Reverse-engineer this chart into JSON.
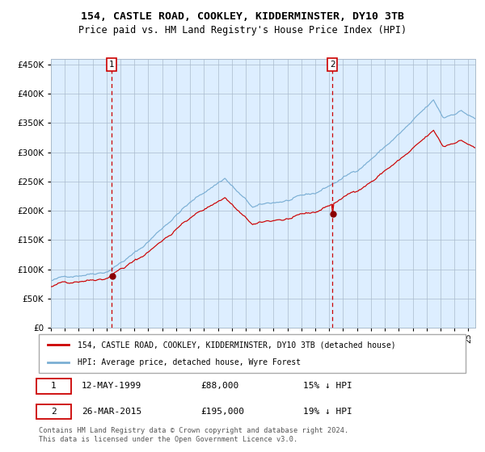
{
  "title1": "154, CASTLE ROAD, COOKLEY, KIDDERMINSTER, DY10 3TB",
  "title2": "Price paid vs. HM Land Registry's House Price Index (HPI)",
  "legend_line1": "154, CASTLE ROAD, COOKLEY, KIDDERMINSTER, DY10 3TB (detached house)",
  "legend_line2": "HPI: Average price, detached house, Wyre Forest",
  "annotation1_date": "12-MAY-1999",
  "annotation1_price": "£88,000",
  "annotation1_hpi": "15% ↓ HPI",
  "annotation2_date": "26-MAR-2015",
  "annotation2_price": "£195,000",
  "annotation2_hpi": "19% ↓ HPI",
  "footer": "Contains HM Land Registry data © Crown copyright and database right 2024.\nThis data is licensed under the Open Government Licence v3.0.",
  "purchase1_year": 1999.36,
  "purchase1_price": 88000,
  "purchase2_year": 2015.23,
  "purchase2_price": 195000,
  "hpi_color": "#7bafd4",
  "price_color": "#cc0000",
  "plot_bg": "#ddeeff",
  "vline_color": "#cc0000",
  "marker_color": "#8b0000",
  "ylim_max": 460000,
  "xlim_start": 1995.0,
  "xlim_end": 2025.5,
  "grid_color": "#aabbcc",
  "legend_border": "#aaaaaa",
  "table_box_color": "#cc0000",
  "footer_color": "#555555"
}
